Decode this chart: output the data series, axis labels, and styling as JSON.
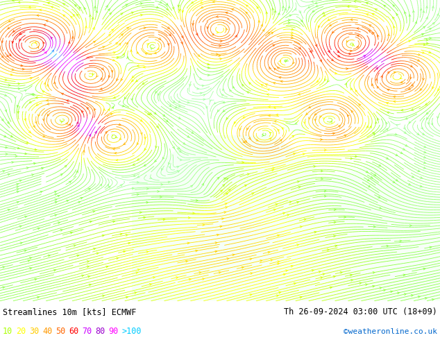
{
  "title_left": "Streamlines 10m [kts] ECMWF",
  "title_right": "Th 26-09-2024 03:00 UTC (18+09)",
  "credit": "©weatheronline.co.uk",
  "legend_values": [
    "10",
    "20",
    "30",
    "40",
    "50",
    "60",
    "70",
    "80",
    "90",
    ">100"
  ],
  "legend_colors": [
    "#aaff00",
    "#ffff00",
    "#ffcc00",
    "#ff9900",
    "#ff6600",
    "#ff0000",
    "#cc00ff",
    "#9900cc",
    "#ff00ff",
    "#00ccff"
  ],
  "bg_color": "#aaffaa",
  "map_bg": "#c8ffc8",
  "figsize": [
    6.34,
    4.9
  ],
  "dpi": 100,
  "bottom_bar_color": "#ffffff",
  "text_color": "#000000",
  "credit_color": "#0066cc",
  "ocean_color": "#f0fff0",
  "land_color": "#c8ffc8",
  "terrain_color": "#f8fff8"
}
